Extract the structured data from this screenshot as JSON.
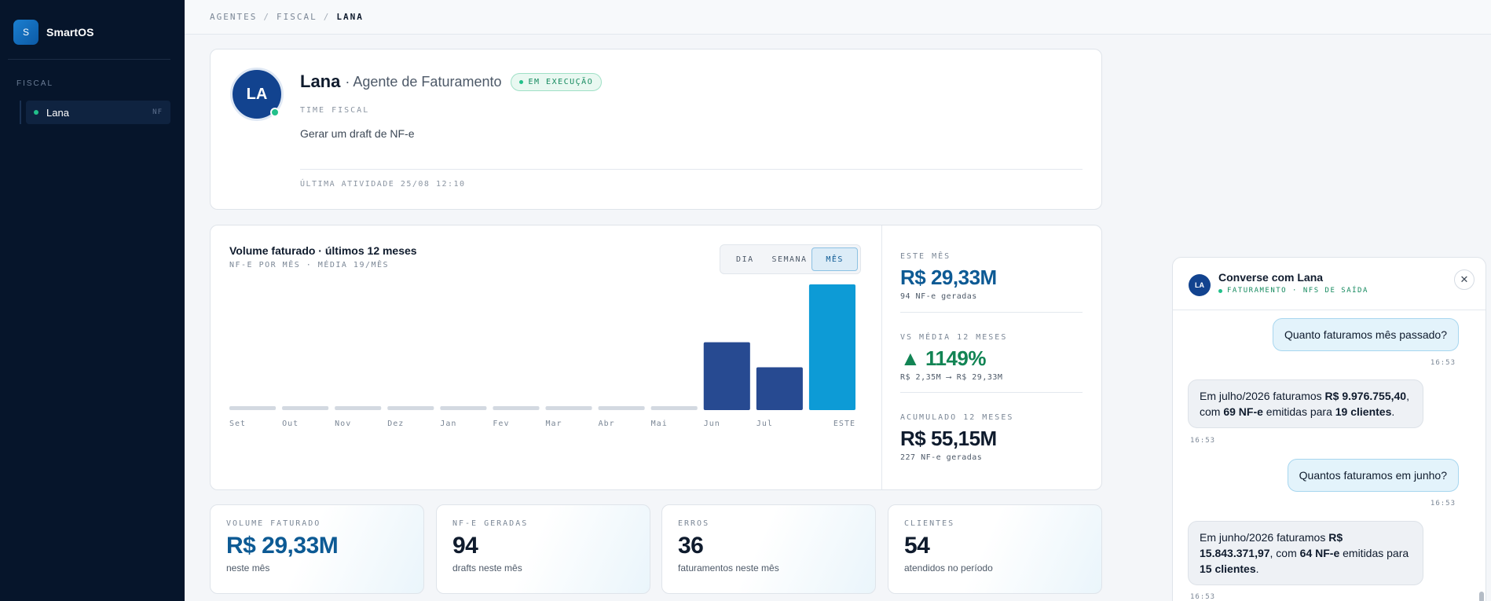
{
  "app": {
    "name": "SmartOS",
    "logo_letter": "S"
  },
  "sidebar": {
    "section": "FISCAL",
    "items": [
      {
        "label": "Lana",
        "badge": "NF",
        "status_color": "#22c08a"
      }
    ]
  },
  "breadcrumb": [
    "AGENTES",
    "FISCAL",
    "LANA"
  ],
  "agent": {
    "initials": "LA",
    "name": "Lana",
    "role": "· Agente de Faturamento",
    "status": "EM EXECUÇÃO",
    "team": "TIME FISCAL",
    "description": "Gerar um draft de NF-e",
    "last_activity": "ÚLTIMA ATIVIDADE 25/08 12:10"
  },
  "chart_section": {
    "title": "Volume faturado · últimos 12 meses",
    "subtitle": "NF-E POR MÊS · MÉDIA 19/MÊS",
    "range_options": [
      "DIA",
      "SEMANA",
      "MÊS"
    ],
    "range_selected": "MÊS"
  },
  "chart_data": {
    "type": "bar",
    "categories": [
      "Set",
      "Out",
      "Nov",
      "Dez",
      "Jan",
      "Fev",
      "Mar",
      "Abr",
      "Mai",
      "Jun",
      "Jul",
      "ESTE"
    ],
    "values": [
      0,
      0,
      0,
      0,
      0,
      0,
      0,
      0,
      0,
      15.84,
      9.98,
      29.33
    ],
    "unit": "R$ M",
    "ylim": [
      0,
      29.33
    ],
    "colors": {
      "empty": "#d3d9e1",
      "past": "#274a91",
      "current": "#0d9bd6"
    },
    "grid": false,
    "legend": "none"
  },
  "stats": [
    {
      "label": "ESTE MÊS",
      "value": "R$ 29,33M",
      "sub": "94 NF-e geradas",
      "color": "#0d5a94"
    },
    {
      "label": "VS MÉDIA 12 MESES",
      "value": "▲ 1149%",
      "sub": "R$ 2,35M ⟶ R$ 29,33M",
      "color": "#128454"
    },
    {
      "label": "ACUMULADO 12 MESES",
      "value": "R$ 55,15M",
      "sub": "227 NF-e geradas",
      "color": "#0f1b2d"
    }
  ],
  "kpis": [
    {
      "label": "VOLUME FATURADO",
      "value": "R$ 29,33M",
      "sub": "neste mês",
      "color": "#0d5a94"
    },
    {
      "label": "NF-E GERADAS",
      "value": "94",
      "sub": "drafts neste mês",
      "color": "#0f1b2d"
    },
    {
      "label": "ERROS",
      "value": "36",
      "sub": "faturamentos neste mês",
      "color": "#0f1b2d"
    },
    {
      "label": "CLIENTES",
      "value": "54",
      "sub": "atendidos no período",
      "color": "#0f1b2d"
    }
  ],
  "chat": {
    "avatar": "LA",
    "title": "Converse com Lana",
    "subtitle": "FATURAMENTO · NFS DE SAÍDA",
    "close_glyph": "✕",
    "messages": [
      {
        "from": "user",
        "text": "Quanto faturamos mês passado?",
        "time": "16:53"
      },
      {
        "from": "bot",
        "parts": [
          {
            "t": "Em julho/2026 faturamos "
          },
          {
            "b": "R$ 9.976.755,40"
          },
          {
            "t": ", com "
          },
          {
            "b": "69 NF-e"
          },
          {
            "t": " emitidas para "
          },
          {
            "b": "19 clientes"
          },
          {
            "t": "."
          }
        ],
        "time": "16:53"
      },
      {
        "from": "user",
        "text": "Quantos faturamos em junho?",
        "time": "16:53"
      },
      {
        "from": "bot",
        "parts": [
          {
            "t": "Em junho/2026 faturamos "
          },
          {
            "b": "R$ 15.843.371,97"
          },
          {
            "t": ", com "
          },
          {
            "b": "64 NF-e"
          },
          {
            "t": " emitidas para "
          },
          {
            "b": "15 clientes"
          },
          {
            "t": "."
          }
        ],
        "time": "16:53"
      }
    ]
  }
}
